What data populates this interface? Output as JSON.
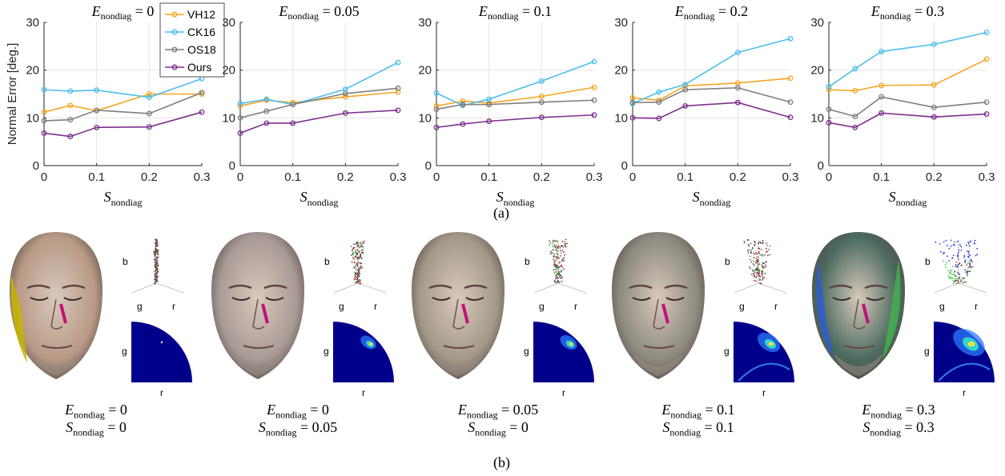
{
  "chart_data": [
    {
      "type": "line",
      "title": "E_nondiag = 0",
      "title_sym": "E",
      "title_sub": "nondiag",
      "title_val": "0",
      "xlabel_sym": "S",
      "xlabel_sub": "nondiag",
      "ylabel": "Normal Error [deg.]",
      "ylim": [
        0,
        30
      ],
      "xlim": [
        0,
        0.3
      ],
      "xticks": [
        "0",
        "0.1",
        "0.2",
        "0.3"
      ],
      "yticks": [
        "0",
        "10",
        "20",
        "30"
      ],
      "grid": true,
      "legend": "top-left",
      "x": [
        0,
        0.05,
        0.1,
        0.2,
        0.3
      ],
      "series": [
        {
          "name": "VH12",
          "values": [
            11.2,
            12.6,
            11.5,
            15.0,
            15.0
          ]
        },
        {
          "name": "CK16",
          "values": [
            15.9,
            15.6,
            15.8,
            14.3,
            18.2
          ]
        },
        {
          "name": "OS18",
          "values": [
            9.4,
            9.6,
            11.6,
            10.9,
            15.3
          ]
        },
        {
          "name": "Ours",
          "values": [
            6.8,
            6.1,
            8.0,
            8.1,
            11.2
          ]
        }
      ]
    },
    {
      "type": "line",
      "title": "E_nondiag = 0.05",
      "title_sym": "E",
      "title_sub": "nondiag",
      "title_val": "0.05",
      "xlabel_sym": "S",
      "xlabel_sub": "nondiag",
      "ylabel": "",
      "ylim": [
        0,
        30
      ],
      "xlim": [
        0,
        0.3
      ],
      "xticks": [
        "0",
        "0.1",
        "0.2",
        "0.3"
      ],
      "yticks": [
        "0",
        "10",
        "20",
        "30"
      ],
      "grid": true,
      "x": [
        0,
        0.05,
        0.1,
        0.2,
        0.3
      ],
      "series": [
        {
          "name": "VH12",
          "values": [
            12.5,
            13.7,
            13.2,
            14.4,
            15.4
          ]
        },
        {
          "name": "CK16",
          "values": [
            13.0,
            13.9,
            12.8,
            16.0,
            21.6
          ]
        },
        {
          "name": "OS18",
          "values": [
            10.0,
            11.4,
            12.8,
            15.1,
            16.2
          ]
        },
        {
          "name": "Ours",
          "values": [
            6.8,
            8.9,
            8.9,
            11.0,
            11.6
          ]
        }
      ]
    },
    {
      "type": "line",
      "title": "E_nondiag = 0.1",
      "title_sym": "E",
      "title_sub": "nondiag",
      "title_val": "0.1",
      "xlabel_sym": "S",
      "xlabel_sub": "nondiag",
      "ylabel": "",
      "ylim": [
        0,
        30
      ],
      "xlim": [
        0,
        0.3
      ],
      "xticks": [
        "0",
        "0.1",
        "0.2",
        "0.3"
      ],
      "yticks": [
        "0",
        "10",
        "20",
        "30"
      ],
      "grid": true,
      "x": [
        0,
        0.05,
        0.1,
        0.2,
        0.3
      ],
      "series": [
        {
          "name": "VH12",
          "values": [
            12.5,
            13.5,
            13.1,
            14.5,
            16.4
          ]
        },
        {
          "name": "CK16",
          "values": [
            15.2,
            12.6,
            13.9,
            17.7,
            21.8
          ]
        },
        {
          "name": "OS18",
          "values": [
            11.8,
            12.8,
            12.8,
            13.3,
            13.7
          ]
        },
        {
          "name": "Ours",
          "values": [
            8.0,
            8.7,
            9.3,
            10.1,
            10.6
          ]
        }
      ]
    },
    {
      "type": "line",
      "title": "E_nondiag = 0.2",
      "title_sym": "E",
      "title_sub": "nondiag",
      "title_val": "0.2",
      "xlabel_sym": "S",
      "xlabel_sub": "nondiag",
      "ylabel": "",
      "ylim": [
        0,
        30
      ],
      "xlim": [
        0,
        0.3
      ],
      "xticks": [
        "0",
        "0.1",
        "0.2",
        "0.3"
      ],
      "yticks": [
        "0",
        "10",
        "20",
        "30"
      ],
      "grid": true,
      "x": [
        0,
        0.05,
        0.1,
        0.2,
        0.3
      ],
      "series": [
        {
          "name": "VH12",
          "values": [
            14.2,
            13.7,
            16.7,
            17.3,
            18.3
          ]
        },
        {
          "name": "CK16",
          "values": [
            13.0,
            15.4,
            17.0,
            23.7,
            26.6
          ]
        },
        {
          "name": "OS18",
          "values": [
            13.2,
            13.3,
            15.9,
            16.3,
            13.3
          ]
        },
        {
          "name": "Ours",
          "values": [
            10.0,
            9.9,
            12.5,
            13.2,
            10.1
          ]
        }
      ]
    },
    {
      "type": "line",
      "title": "E_nondiag = 0.3",
      "title_sym": "E",
      "title_sub": "nondiag",
      "title_val": "0.3",
      "xlabel_sym": "S",
      "xlabel_sub": "nondiag",
      "ylabel": "",
      "ylim": [
        0,
        30
      ],
      "xlim": [
        0,
        0.3
      ],
      "xticks": [
        "0",
        "0.1",
        "0.2",
        "0.3"
      ],
      "yticks": [
        "0",
        "10",
        "20",
        "30"
      ],
      "grid": true,
      "x": [
        0,
        0.05,
        0.1,
        0.2,
        0.3
      ],
      "series": [
        {
          "name": "VH12",
          "values": [
            15.9,
            15.7,
            16.8,
            16.9,
            22.3
          ]
        },
        {
          "name": "CK16",
          "values": [
            16.5,
            20.3,
            23.9,
            25.4,
            27.9
          ]
        },
        {
          "name": "OS18",
          "values": [
            11.8,
            10.3,
            14.4,
            12.2,
            13.3
          ]
        },
        {
          "name": "Ours",
          "values": [
            9.0,
            8.0,
            11.0,
            10.2,
            10.8
          ]
        }
      ]
    }
  ],
  "series_colors": {
    "VH12": "#f5a623",
    "CK16": "#4dbeee",
    "OS18": "#7f7f7f",
    "Ours": "#7e2f8e"
  },
  "caption_a": "(a)",
  "caption_b": "(b)",
  "axis_letters": {
    "b": "b",
    "g": "g",
    "r": "r"
  },
  "face_panels": [
    {
      "e_sym": "E",
      "e_sub": "nondiag",
      "e_val": "= 0",
      "s_sym": "S",
      "s_sub": "nondiag",
      "s_val": "= 0",
      "tint": "#b89a86",
      "spread": 0.05
    },
    {
      "e_sym": "E",
      "e_sub": "nondiag",
      "e_val": "= 0",
      "s_sym": "S",
      "s_sub": "nondiag",
      "s_val": "= 0.05",
      "tint": "#a89a96",
      "spread": 0.3
    },
    {
      "e_sym": "E",
      "e_sub": "nondiag",
      "e_val": "= 0.05",
      "s_sym": "S",
      "s_sub": "nondiag",
      "s_val": "= 0",
      "tint": "#a39988",
      "spread": 0.35
    },
    {
      "e_sym": "E",
      "e_sub": "nondiag",
      "e_val": "= 0.1",
      "s_sym": "S",
      "s_sub": "nondiag",
      "s_val": "= 0.1",
      "tint": "#8d8a80",
      "spread": 0.6
    },
    {
      "e_sym": "E",
      "e_sub": "nondiag",
      "e_val": "= 0.3",
      "s_sym": "S",
      "s_sub": "nondiag",
      "s_val": "= 0.3",
      "tint": "#4a6a5e",
      "spread": 1.0
    }
  ]
}
